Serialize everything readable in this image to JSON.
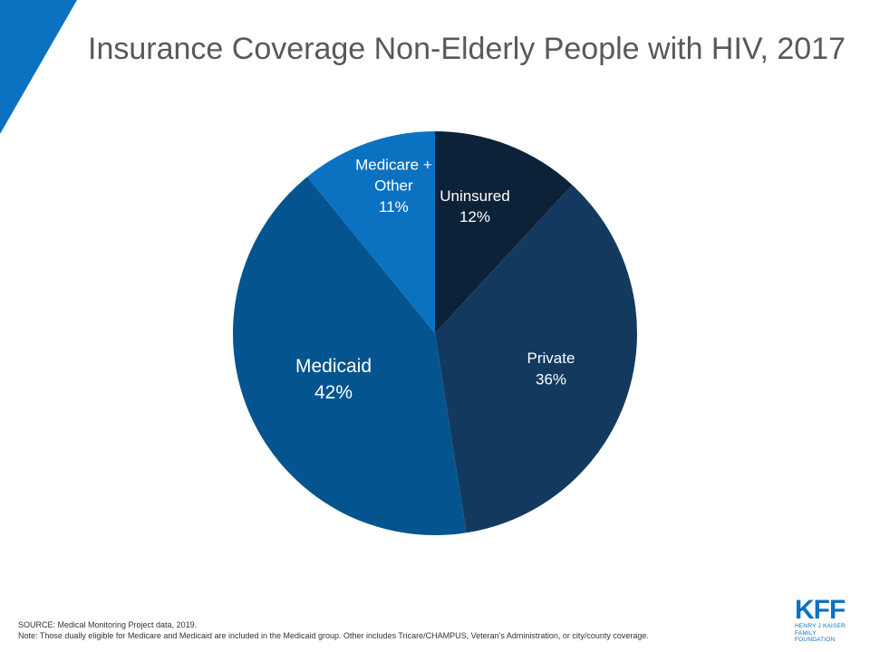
{
  "title": "Insurance Coverage Non-Elderly People with HIV, 2017",
  "colors": {
    "accent_triangle": "#0b72c2",
    "uninsured": "#0c2238",
    "private": "#133a5e",
    "medicaid": "#04548f",
    "medicare_other": "#0b72c2",
    "logo": "#0b72c2"
  },
  "chart_data": {
    "type": "pie",
    "title": "Insurance Coverage Non-Elderly People with HIV, 2017",
    "start_angle_deg": 0,
    "direction": "clockwise",
    "slices": [
      {
        "key": "uninsured",
        "label_lines": [
          "Uninsured"
        ],
        "value_label": "12%",
        "value": 12,
        "color": "#0c2238"
      },
      {
        "key": "private",
        "label_lines": [
          "Private"
        ],
        "value_label": "36%",
        "value": 36,
        "color": "#133a5e"
      },
      {
        "key": "medicaid",
        "label_lines": [
          "Medicaid"
        ],
        "value_label": "42%",
        "value": 42,
        "color": "#04548f"
      },
      {
        "key": "medicare-other",
        "label_lines": [
          "Medicare +",
          "Other"
        ],
        "value_label": "11%",
        "value": 11,
        "color": "#0b72c2"
      }
    ]
  },
  "footer": {
    "source": "SOURCE: Medical Monitoring Project data, 2019.",
    "note": "Note: Those dually eligible for Medicare and Medicaid are included in the Medicaid group. Other includes Tricare/CHAMPUS, Veteran's Administration, or city/county coverage."
  },
  "logo": {
    "mark": "KFF",
    "line1": "HENRY J KAISER",
    "line2": "FAMILY FOUNDATION"
  }
}
